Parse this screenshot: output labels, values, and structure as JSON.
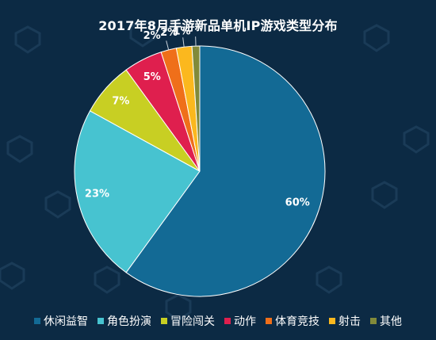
{
  "chart_data": {
    "type": "pie",
    "title": "2017年8月手游新品单机IP游戏类型分布",
    "start_angle_deg": 0,
    "direction": "clockwise",
    "legend_position": "bottom",
    "categories": [
      "休闲益智",
      "角色扮演",
      "冒险闯关",
      "动作",
      "体育竞技",
      "射击",
      "其他"
    ],
    "values": [
      60,
      23,
      7,
      5,
      2,
      2,
      1
    ],
    "labels": [
      "60%",
      "23%",
      "7%",
      "5%",
      "2%",
      "2%",
      "1%"
    ],
    "colors": [
      "#136a95",
      "#47c3d0",
      "#c8cf23",
      "#df1f4e",
      "#ef6f1a",
      "#fbb81e",
      "#818a3a"
    ]
  }
}
